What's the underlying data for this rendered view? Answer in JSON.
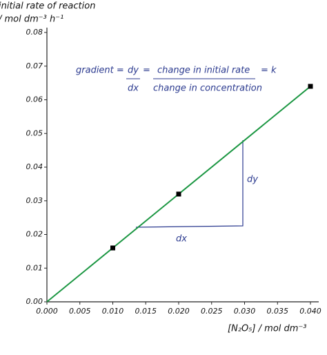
{
  "chart_data": {
    "type": "scatter",
    "y_label": [
      "initial rate of reaction",
      "/ mol dm⁻³ h⁻¹"
    ],
    "x_label": "[N₂O₅] / mol dm⁻³",
    "annotations": {
      "gradient": "gradient =",
      "dy_fraction": "dy",
      "dx_fraction": "dx",
      "equals": "=",
      "numerator": "change in initial rate",
      "denominator": "change in concentration",
      "k": "= k",
      "dy_triangle": "dy",
      "dx_triangle": "dx"
    },
    "x": [
      0.01,
      0.02,
      0.04
    ],
    "values": [
      0.016,
      0.032,
      0.064
    ],
    "color": "#000000",
    "line": {
      "x": [
        0,
        0.04
      ],
      "values": [
        0,
        0.064
      ],
      "color": "#1a9641"
    },
    "xlim": [
      0,
      0.04
    ],
    "ylim": [
      0,
      0.08
    ],
    "xticks": [
      {
        "value": 0,
        "label": "0.000"
      },
      0.005,
      {
        "value": 0.01,
        "label": "0.010"
      },
      0.015,
      {
        "value": 0.02,
        "label": "0.020"
      },
      0.025,
      {
        "value": 0.03,
        "label": "0.030"
      },
      0.035,
      {
        "value": 0.04,
        "label": "0.040"
      }
    ],
    "yticks": [
      {
        "value": 0,
        "label": "0.00"
      },
      0.01,
      0.02,
      0.03,
      0.04,
      0.05,
      0.06,
      0.07,
      0.08
    ]
  }
}
